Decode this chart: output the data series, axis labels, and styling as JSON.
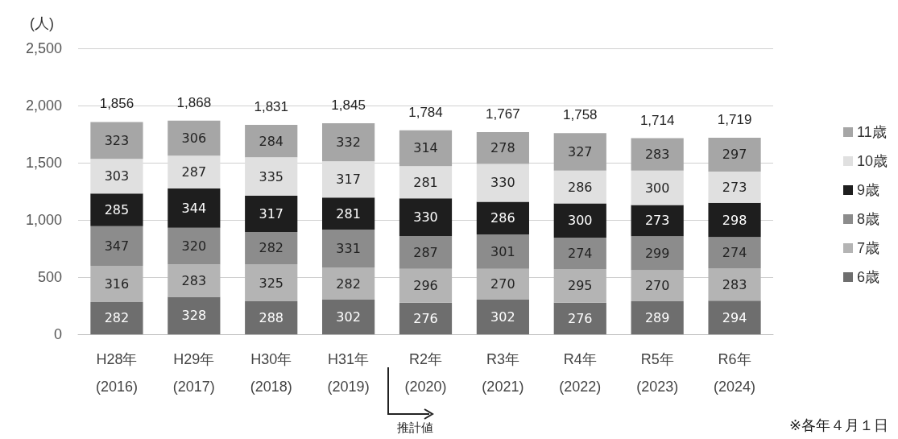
{
  "chart_data": {
    "type": "bar",
    "stacked": true,
    "ylabel": "(人)",
    "categories": [
      "H28年\n(2016)",
      "H29年\n(2017)",
      "H30年\n(2018)",
      "H31年\n(2019)",
      "R2年\n(2020)",
      "R3年\n(2021)",
      "R4年\n(2022)",
      "R5年\n(2023)",
      "R6年\n(2024)"
    ],
    "series": [
      {
        "name": "6歳",
        "color": "#6e6e6e",
        "values": [
          282,
          328,
          288,
          302,
          276,
          302,
          276,
          289,
          294
        ]
      },
      {
        "name": "7歳",
        "color": "#b4b4b4",
        "values": [
          316,
          283,
          325,
          282,
          296,
          270,
          295,
          270,
          283
        ]
      },
      {
        "name": "8歳",
        "color": "#8c8c8c",
        "values": [
          347,
          320,
          282,
          331,
          287,
          301,
          274,
          299,
          274
        ]
      },
      {
        "name": "9歳",
        "color": "#1e1e1e",
        "values": [
          285,
          344,
          317,
          281,
          330,
          286,
          300,
          273,
          298
        ]
      },
      {
        "name": "10歳",
        "color": "#e0e0e0",
        "values": [
          303,
          287,
          335,
          317,
          281,
          330,
          286,
          300,
          273
        ]
      },
      {
        "name": "11歳",
        "color": "#a6a6a6",
        "values": [
          323,
          306,
          284,
          332,
          314,
          278,
          327,
          283,
          297
        ]
      }
    ],
    "totals": [
      "1,856",
      "1,868",
      "1,831",
      "1,845",
      "1,784",
      "1,767",
      "1,758",
      "1,714",
      "1,719"
    ],
    "ylim": [
      0,
      2500
    ],
    "yticks": [
      0,
      500,
      {
        "value": 1000,
        "label": "1,000"
      },
      {
        "value": 1500,
        "label": "1,500"
      },
      {
        "value": 2000,
        "label": "2,000"
      },
      {
        "value": 2500,
        "label": "2,500"
      }
    ],
    "grid": "y",
    "legend": "right",
    "data_labels": true,
    "annotations": [
      "推計値",
      "※各年４月１日"
    ]
  }
}
